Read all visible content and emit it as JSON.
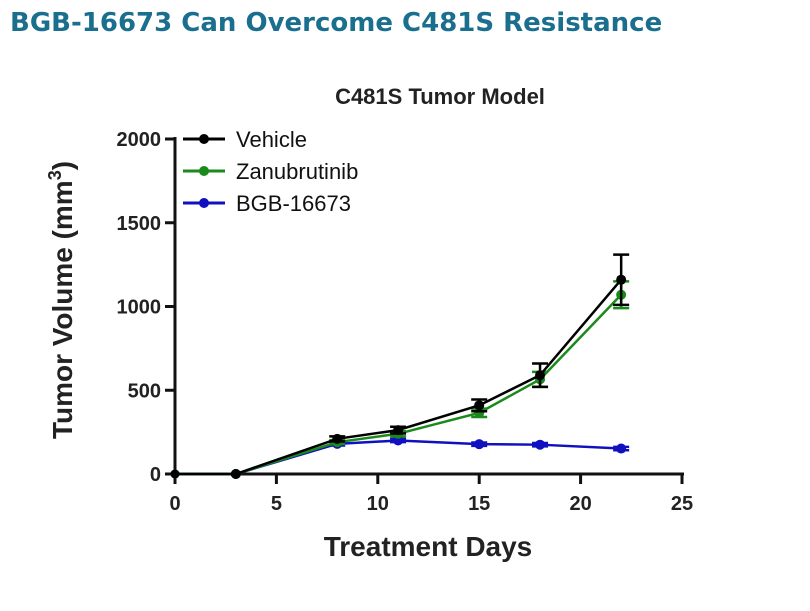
{
  "slide": {
    "title": "BGB-16673 Can Overcome C481S Resistance"
  },
  "chart_data": {
    "type": "line",
    "title": "C481S Tumor Model",
    "xlabel": "Treatment Days",
    "ylabel_main": "Tumor Volume (mm",
    "ylabel_sup": "3",
    "ylabel_close": ")",
    "xlim": [
      0,
      25
    ],
    "ylim": [
      0,
      2000
    ],
    "xticks": [
      0,
      5,
      10,
      15,
      20,
      25
    ],
    "yticks": [
      0,
      500,
      1000,
      1500,
      2000
    ],
    "x": [
      3,
      8,
      11,
      15,
      18,
      22
    ],
    "legend_position": "top-left",
    "grid": false,
    "series": [
      {
        "name": "Vehicle",
        "color": "#000000",
        "values": [
          0,
          210,
          262,
          410,
          590,
          1160
        ],
        "errors": [
          0,
          15,
          20,
          35,
          70,
          150
        ]
      },
      {
        "name": "Zanubrutinib",
        "color": "#1a8a1a",
        "values": [
          0,
          190,
          240,
          365,
          565,
          1070
        ],
        "errors": [
          0,
          12,
          15,
          25,
          45,
          80
        ]
      },
      {
        "name": "BGB-16673",
        "color": "#1010c0",
        "values": [
          0,
          180,
          200,
          178,
          175,
          152
        ],
        "errors": [
          0,
          10,
          10,
          10,
          10,
          10
        ]
      }
    ]
  }
}
